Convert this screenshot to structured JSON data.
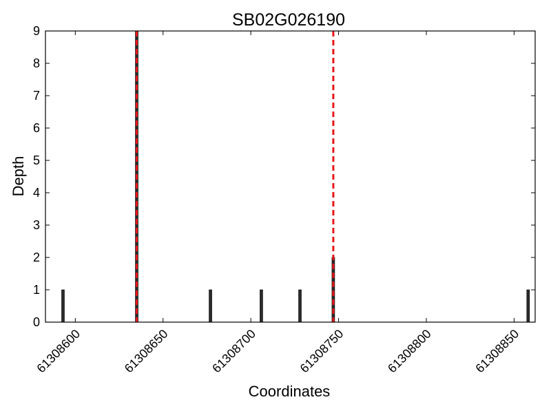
{
  "chart_data": {
    "type": "bar",
    "title": "SB02G026190",
    "xlabel": "Coordinates",
    "ylabel": "Depth",
    "xlim": [
      61308583,
      61308862
    ],
    "ylim": [
      0,
      9
    ],
    "x_ticks": [
      61308600,
      61308650,
      61308700,
      61308750,
      61308800,
      61308850
    ],
    "y_ticks": [
      0,
      1,
      2,
      3,
      4,
      5,
      6,
      7,
      8,
      9
    ],
    "bars": [
      {
        "x": 61308593,
        "value": 1
      },
      {
        "x": 61308635,
        "value": 9
      },
      {
        "x": 61308677,
        "value": 1
      },
      {
        "x": 61308706,
        "value": 1
      },
      {
        "x": 61308728,
        "value": 1
      },
      {
        "x": 61308747,
        "value": 2
      },
      {
        "x": 61308858,
        "value": 1
      }
    ],
    "markers": [
      {
        "x": 61308635,
        "style": "dashed",
        "color": "#e8161b"
      },
      {
        "x": 61308747,
        "style": "dashed",
        "color": "#e8161b"
      }
    ],
    "bar_color": "#2b2b2b",
    "grid": false,
    "legend": "none"
  }
}
